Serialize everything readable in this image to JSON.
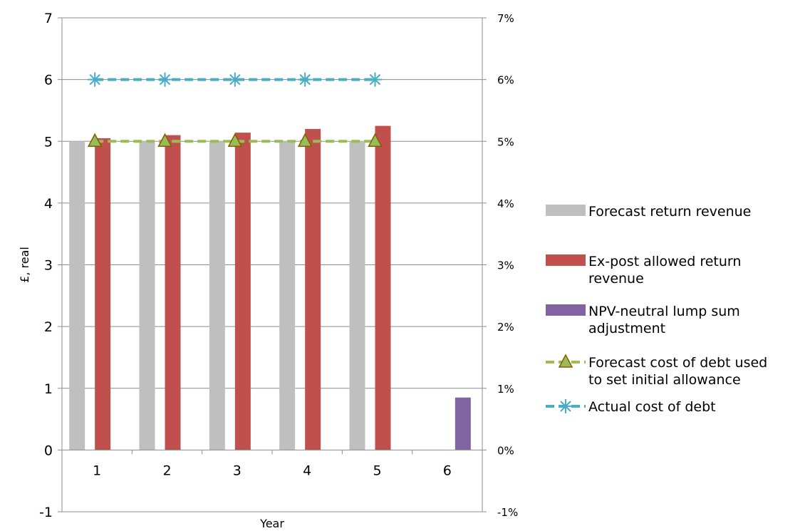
{
  "chart_data": {
    "type": "bar",
    "title": "",
    "xlabel": "Year",
    "ylabel": "£, real",
    "categories": [
      "1",
      "2",
      "3",
      "4",
      "5",
      "6"
    ],
    "ylim": [
      -1,
      7
    ],
    "y_ticks": [
      "-1",
      "0",
      "1",
      "2",
      "3",
      "4",
      "5",
      "6",
      "7"
    ],
    "y2lim": [
      -0.01,
      0.07
    ],
    "y2_ticks": [
      "-1%",
      "0%",
      "1%",
      "2%",
      "3%",
      "4%",
      "5%",
      "6%",
      "7%"
    ],
    "grid": true,
    "legend_position": "right",
    "series": [
      {
        "name": "Forecast return revenue",
        "type": "bar",
        "axis": "left",
        "color": "#bfbfbf",
        "values": [
          5.0,
          5.0,
          5.0,
          5.0,
          5.0,
          0
        ]
      },
      {
        "name": "Ex-post allowed return revenue",
        "type": "bar",
        "axis": "left",
        "color": "#c0504d",
        "values": [
          5.05,
          5.1,
          5.14,
          5.2,
          5.25,
          0
        ]
      },
      {
        "name": "NPV-neutral lump sum adjustment",
        "type": "bar",
        "axis": "left",
        "color": "#8064a2",
        "values": [
          0,
          0,
          0,
          0,
          0,
          0.85
        ]
      },
      {
        "name": "Forecast cost of debt used to set initial allowance",
        "type": "line",
        "axis": "right",
        "color": "#9bbb59",
        "marker": "triangle",
        "values": [
          0.05,
          0.05,
          0.05,
          0.05,
          0.05,
          null
        ]
      },
      {
        "name": "Actual cost of debt",
        "type": "line",
        "axis": "right",
        "color": "#4bacc6",
        "marker": "asterisk",
        "values": [
          0.06,
          0.06,
          0.06,
          0.06,
          0.06,
          null
        ]
      }
    ],
    "legend": [
      {
        "lines": [
          "Forecast return revenue"
        ]
      },
      {
        "lines": [
          "Ex-post allowed return",
          "revenue"
        ]
      },
      {
        "lines": [
          "NPV-neutral lump sum",
          "adjustment"
        ]
      },
      {
        "lines": [
          "Forecast cost of debt used",
          "to set initial allowance"
        ]
      },
      {
        "lines": [
          "Actual cost of debt"
        ]
      }
    ]
  }
}
